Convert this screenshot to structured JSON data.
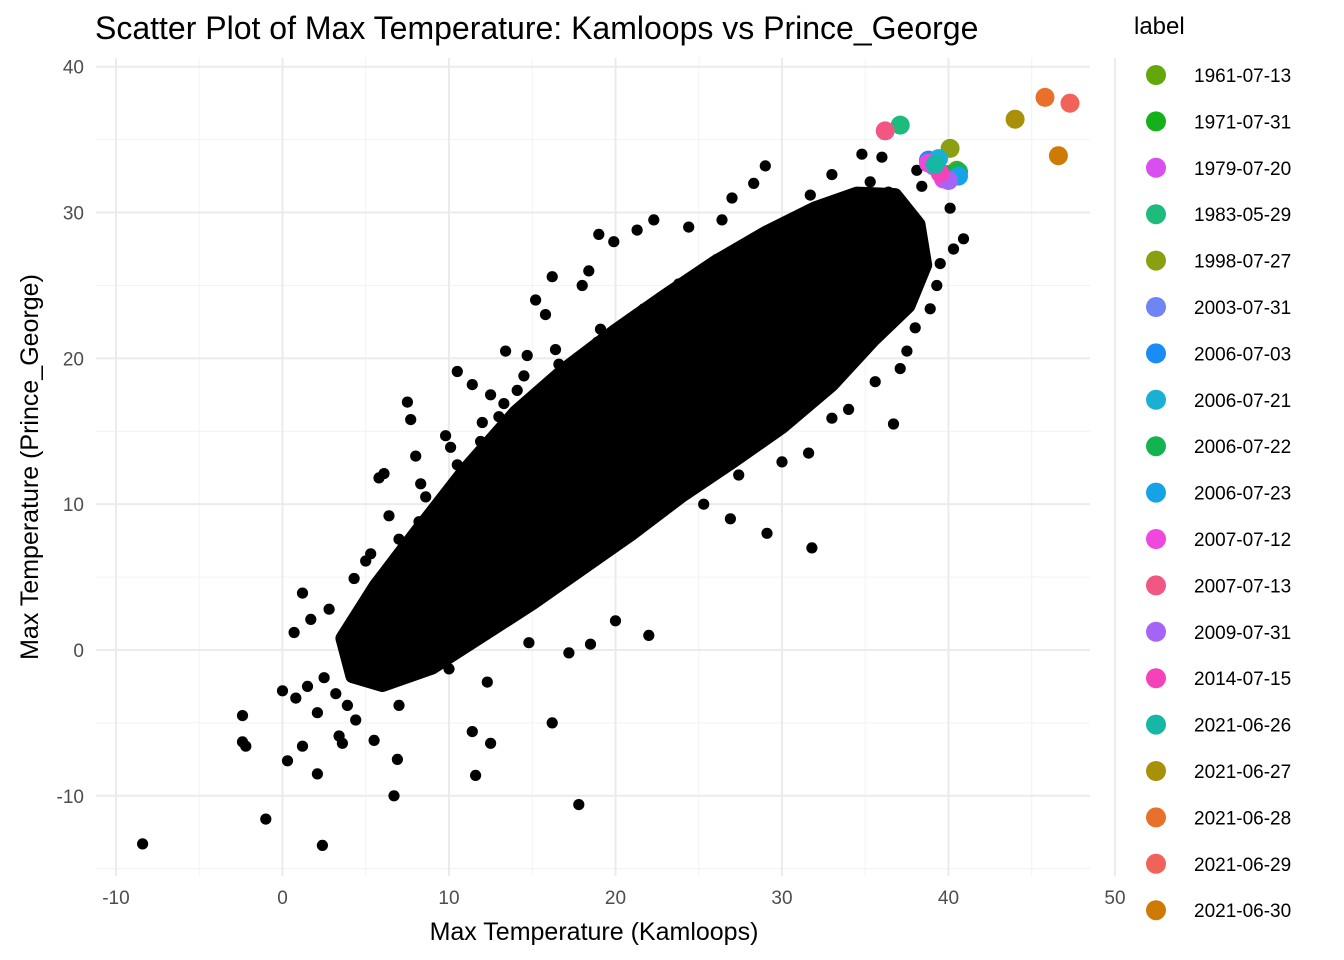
{
  "chart_data": {
    "type": "scatter",
    "title": "Scatter Plot of Max Temperature: Kamloops vs Prince_George",
    "xlabel": "Max Temperature (Kamloops)",
    "ylabel": "Max Temperature (Prince_George)",
    "xlim": [
      -11.2,
      48.5
    ],
    "ylim": [
      -15.5,
      40.6
    ],
    "x_ticks": [
      -10,
      0,
      10,
      20,
      30,
      40,
      50
    ],
    "y_ticks": [
      -10,
      0,
      10,
      20,
      30,
      40
    ],
    "grid": true,
    "legend": {
      "title": "label",
      "placement": "right"
    },
    "base_series": {
      "color": "#000000",
      "points": [
        [
          -8.4,
          -13.3
        ],
        [
          -1.0,
          -11.6
        ],
        [
          2.4,
          -13.4
        ],
        [
          6.7,
          -10.0
        ],
        [
          17.8,
          -10.6
        ],
        [
          -2.4,
          -4.5
        ],
        [
          -2.4,
          -6.3
        ],
        [
          -2.2,
          -6.6
        ],
        [
          0.3,
          -7.6
        ],
        [
          1.2,
          -6.6
        ],
        [
          2.1,
          -8.5
        ],
        [
          3.4,
          -5.9
        ],
        [
          3.6,
          -6.4
        ],
        [
          5.5,
          -6.2
        ],
        [
          6.9,
          -7.5
        ],
        [
          11.4,
          -5.6
        ],
        [
          11.6,
          -8.6
        ],
        [
          12.5,
          -6.4
        ],
        [
          16.2,
          -5.0
        ],
        [
          0.0,
          -2.8
        ],
        [
          0.8,
          -3.3
        ],
        [
          1.5,
          -2.5
        ],
        [
          2.1,
          -4.3
        ],
        [
          2.5,
          -1.9
        ],
        [
          3.2,
          -3.0
        ],
        [
          3.9,
          -3.8
        ],
        [
          4.4,
          -4.8
        ],
        [
          1.2,
          3.9
        ],
        [
          1.7,
          2.1
        ],
        [
          2.8,
          2.8
        ],
        [
          0.7,
          1.2
        ],
        [
          4.3,
          4.9
        ],
        [
          5.0,
          6.1
        ],
        [
          5.3,
          6.6
        ],
        [
          5.8,
          11.8
        ],
        [
          6.1,
          12.1
        ],
        [
          7.5,
          17.0
        ],
        [
          7.7,
          15.8
        ],
        [
          8.0,
          13.3
        ],
        [
          8.2,
          8.8
        ],
        [
          9.8,
          14.7
        ],
        [
          10.5,
          19.1
        ],
        [
          11.4,
          18.2
        ],
        [
          12.5,
          17.5
        ],
        [
          13.4,
          20.5
        ],
        [
          13.0,
          16.0
        ],
        [
          14.5,
          18.8
        ],
        [
          15.2,
          24.0
        ],
        [
          15.8,
          23.0
        ],
        [
          16.2,
          25.6
        ],
        [
          14.7,
          20.2
        ],
        [
          18.0,
          25.0
        ],
        [
          18.4,
          26.0
        ],
        [
          19.0,
          28.5
        ],
        [
          19.9,
          28.0
        ],
        [
          21.3,
          28.8
        ],
        [
          22.3,
          29.5
        ],
        [
          24.4,
          29.0
        ],
        [
          27.0,
          31.0
        ],
        [
          28.3,
          32.0
        ],
        [
          29.0,
          33.2
        ],
        [
          31.8,
          7.0
        ],
        [
          29.1,
          8.0
        ],
        [
          26.9,
          9.0
        ],
        [
          25.3,
          10.0
        ],
        [
          22.0,
          1.0
        ],
        [
          20.0,
          2.0
        ],
        [
          18.5,
          0.4
        ],
        [
          17.2,
          -0.2
        ],
        [
          14.8,
          0.5
        ],
        [
          12.3,
          -2.2
        ],
        [
          10.0,
          -1.3
        ],
        [
          7.0,
          -3.8
        ],
        [
          24.1,
          11.0
        ],
        [
          27.4,
          12.0
        ],
        [
          30.0,
          12.9
        ],
        [
          31.6,
          13.5
        ],
        [
          33.0,
          15.9
        ],
        [
          34.0,
          16.5
        ],
        [
          36.7,
          15.5
        ],
        [
          35.6,
          18.4
        ],
        [
          37.1,
          19.3
        ],
        [
          37.5,
          20.5
        ],
        [
          38.0,
          22.1
        ],
        [
          38.9,
          23.4
        ],
        [
          39.3,
          25.0
        ],
        [
          39.5,
          26.5
        ],
        [
          40.3,
          27.5
        ],
        [
          40.9,
          28.2
        ],
        [
          40.1,
          30.3
        ],
        [
          38.4,
          31.8
        ],
        [
          36.0,
          33.8
        ],
        [
          34.8,
          34.0
        ],
        [
          33.0,
          32.6
        ],
        [
          31.7,
          31.2
        ],
        [
          26.4,
          29.5
        ],
        [
          23.8,
          25.1
        ],
        [
          21.7,
          23.4
        ],
        [
          19.1,
          22.0
        ],
        [
          16.4,
          20.6
        ],
        [
          13.3,
          16.9
        ],
        [
          11.9,
          14.3
        ],
        [
          10.5,
          12.7
        ],
        [
          8.6,
          10.5
        ],
        [
          7.0,
          7.6
        ],
        [
          6.0,
          5.0
        ],
        [
          5.2,
          3.3
        ],
        [
          4.6,
          1.6
        ],
        [
          4.0,
          0.0
        ],
        [
          8.9,
          2.1
        ],
        [
          10.9,
          4.0
        ],
        [
          13.7,
          6.2
        ],
        [
          16.0,
          7.9
        ],
        [
          18.6,
          9.1
        ],
        [
          21.0,
          11.9
        ],
        [
          23.2,
          13.6
        ],
        [
          25.9,
          16.3
        ],
        [
          28.1,
          18.0
        ],
        [
          30.6,
          19.7
        ],
        [
          33.4,
          22.9
        ],
        [
          35.9,
          25.8
        ],
        [
          37.7,
          28.6
        ],
        [
          9.6,
          6.4
        ],
        [
          12.1,
          9.2
        ],
        [
          14.4,
          11.2
        ],
        [
          17.3,
          13.9
        ],
        [
          19.8,
          16.4
        ],
        [
          22.5,
          19.0
        ],
        [
          24.9,
          21.1
        ],
        [
          27.6,
          23.8
        ],
        [
          29.8,
          25.9
        ],
        [
          32.2,
          27.9
        ],
        [
          34.5,
          29.9
        ],
        [
          36.4,
          31.4
        ],
        [
          38.1,
          32.9
        ],
        [
          7.6,
          4.2
        ],
        [
          10.2,
          8.0
        ],
        [
          12.8,
          10.8
        ],
        [
          15.5,
          13.4
        ],
        [
          18.1,
          15.2
        ],
        [
          20.6,
          18.0
        ],
        [
          23.0,
          20.1
        ],
        [
          25.5,
          22.6
        ],
        [
          28.7,
          24.9
        ],
        [
          31.2,
          26.7
        ],
        [
          33.7,
          28.3
        ],
        [
          35.1,
          30.7
        ],
        [
          37.4,
          30.0
        ],
        [
          9.1,
          1.3
        ],
        [
          11.3,
          2.6
        ],
        [
          13.1,
          3.7
        ],
        [
          15.0,
          5.4
        ],
        [
          17.8,
          6.6
        ],
        [
          20.3,
          8.4
        ],
        [
          22.8,
          10.5
        ],
        [
          25.0,
          12.6
        ],
        [
          27.9,
          15.0
        ],
        [
          30.3,
          17.1
        ],
        [
          32.5,
          19.5
        ],
        [
          34.3,
          21.8
        ],
        [
          36.2,
          24.0
        ],
        [
          6.4,
          9.2
        ],
        [
          8.3,
          11.4
        ],
        [
          10.1,
          13.9
        ],
        [
          12.0,
          15.6
        ],
        [
          14.1,
          17.8
        ],
        [
          16.6,
          19.6
        ],
        [
          18.9,
          21.1
        ],
        [
          21.4,
          23.0
        ],
        [
          23.6,
          24.3
        ],
        [
          26.1,
          26.8
        ],
        [
          28.0,
          27.5
        ],
        [
          30.1,
          28.7
        ],
        [
          32.8,
          30.0
        ],
        [
          35.3,
          32.1
        ]
      ]
    },
    "series": [
      {
        "name": "1961-07-13",
        "color": "#64a70b",
        "x": [
          40.5
        ],
        "y": [
          32.9
        ]
      },
      {
        "name": "1971-07-31",
        "color": "#14b11a",
        "x": [
          39.9
        ],
        "y": [
          32.6
        ]
      },
      {
        "name": "1979-07-20",
        "color": "#d84ef0",
        "x": [
          39.7
        ],
        "y": [
          32.3
        ]
      },
      {
        "name": "1983-05-29",
        "color": "#1ebc7c",
        "x": [
          37.1
        ],
        "y": [
          36.0
        ]
      },
      {
        "name": "1998-07-27",
        "color": "#8c9e11",
        "x": [
          40.1
        ],
        "y": [
          34.4
        ]
      },
      {
        "name": "2003-07-31",
        "color": "#6f84f5",
        "x": [
          39.1
        ],
        "y": [
          33.2
        ]
      },
      {
        "name": "2006-07-03",
        "color": "#1a8cf6",
        "x": [
          38.8
        ],
        "y": [
          33.6
        ]
      },
      {
        "name": "2006-07-21",
        "color": "#1ab0d4",
        "x": [
          39.4
        ],
        "y": [
          33.7
        ]
      },
      {
        "name": "2006-07-22",
        "color": "#12b350",
        "x": [
          40.6
        ],
        "y": [
          32.8
        ]
      },
      {
        "name": "2006-07-23",
        "color": "#16a2e6",
        "x": [
          40.6
        ],
        "y": [
          32.5
        ]
      },
      {
        "name": "2007-07-12",
        "color": "#f047dd",
        "x": [
          38.8
        ],
        "y": [
          33.4
        ]
      },
      {
        "name": "2007-07-13",
        "color": "#f25783",
        "x": [
          36.2
        ],
        "y": [
          35.6
        ]
      },
      {
        "name": "2009-07-31",
        "color": "#a564f5",
        "x": [
          40.0
        ],
        "y": [
          32.2
        ]
      },
      {
        "name": "2014-07-15",
        "color": "#f542b9",
        "x": [
          39.5
        ],
        "y": [
          32.7
        ]
      },
      {
        "name": "2021-06-26",
        "color": "#16b8a5",
        "x": [
          39.2
        ],
        "y": [
          33.3
        ]
      },
      {
        "name": "2021-06-27",
        "color": "#a89009",
        "x": [
          44.0
        ],
        "y": [
          36.4
        ]
      },
      {
        "name": "2021-06-28",
        "color": "#e8702a",
        "x": [
          45.8
        ],
        "y": [
          37.9
        ]
      },
      {
        "name": "2021-06-29",
        "color": "#f16258",
        "x": [
          47.3
        ],
        "y": [
          37.5
        ]
      },
      {
        "name": "2021-06-30",
        "color": "#cf7a04",
        "x": [
          46.6
        ],
        "y": [
          33.9
        ]
      }
    ]
  }
}
